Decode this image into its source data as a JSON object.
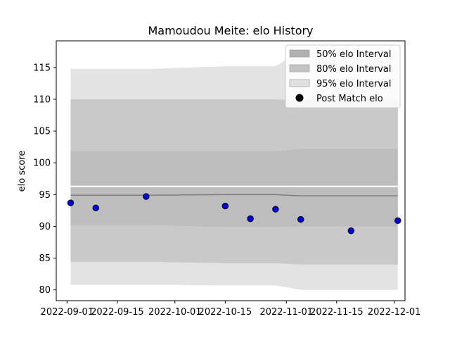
{
  "chart_data": {
    "type": "line",
    "title": "Mamoudou Meite: elo History",
    "xlabel": "",
    "ylabel": "elo score",
    "xlim": [
      "2022-08-29",
      "2022-12-04"
    ],
    "ylim": [
      78.3,
      119.2
    ],
    "x_ticks": [
      "2022-09-01",
      "2022-09-15",
      "2022-10-01",
      "2022-10-15",
      "2022-11-01",
      "2022-11-15",
      "2022-12-01"
    ],
    "y_ticks": [
      80,
      85,
      90,
      95,
      100,
      105,
      110,
      115
    ],
    "grid": false,
    "legend_position": "upper right",
    "colors": {
      "band95": "#e3e3e3",
      "band80": "#c9c9c9",
      "band50": "#bdbdbd",
      "mean_line": "#808080",
      "points_fill": "#0000ee",
      "points_edge": "#000000"
    },
    "bands_x": [
      "2022-09-02",
      "2022-09-25",
      "2022-10-15",
      "2022-10-29",
      "2022-11-05",
      "2022-12-02"
    ],
    "interval_95": {
      "upper": [
        114.8,
        114.8,
        115.2,
        115.2,
        117.6,
        117.6
      ],
      "lower": [
        80.8,
        80.8,
        80.7,
        80.7,
        80.0,
        80.0
      ]
    },
    "interval_80": {
      "upper": [
        110.0,
        110.0,
        110.0,
        110.0,
        109.8,
        109.8
      ],
      "lower": [
        84.4,
        84.4,
        84.2,
        84.2,
        84.0,
        84.0
      ]
    },
    "interval_50": {
      "upper": [
        101.8,
        101.8,
        101.8,
        101.8,
        102.2,
        102.2
      ],
      "lower": [
        90.2,
        90.2,
        89.9,
        89.9,
        90.0,
        90.0
      ]
    },
    "mean": [
      94.9,
      94.9,
      95.0,
      95.0,
      94.8,
      94.8
    ],
    "gap_line": 96.3,
    "post_match": {
      "x": [
        "2022-09-02",
        "2022-09-09",
        "2022-09-23",
        "2022-10-15",
        "2022-10-22",
        "2022-10-29",
        "2022-11-05",
        "2022-11-19",
        "2022-12-02"
      ],
      "y": [
        93.7,
        92.9,
        94.7,
        93.2,
        91.2,
        92.7,
        91.1,
        89.3,
        90.9
      ]
    },
    "legend": [
      {
        "label": "50% elo Interval",
        "kind": "patch",
        "color": "#b0b0b0"
      },
      {
        "label": "80% elo Interval",
        "kind": "patch",
        "color": "#c4c4c4"
      },
      {
        "label": "95% elo Interval",
        "kind": "patch",
        "color": "#e0e0e0"
      },
      {
        "label": "Post Match elo",
        "kind": "marker",
        "color": "#000000"
      }
    ]
  }
}
